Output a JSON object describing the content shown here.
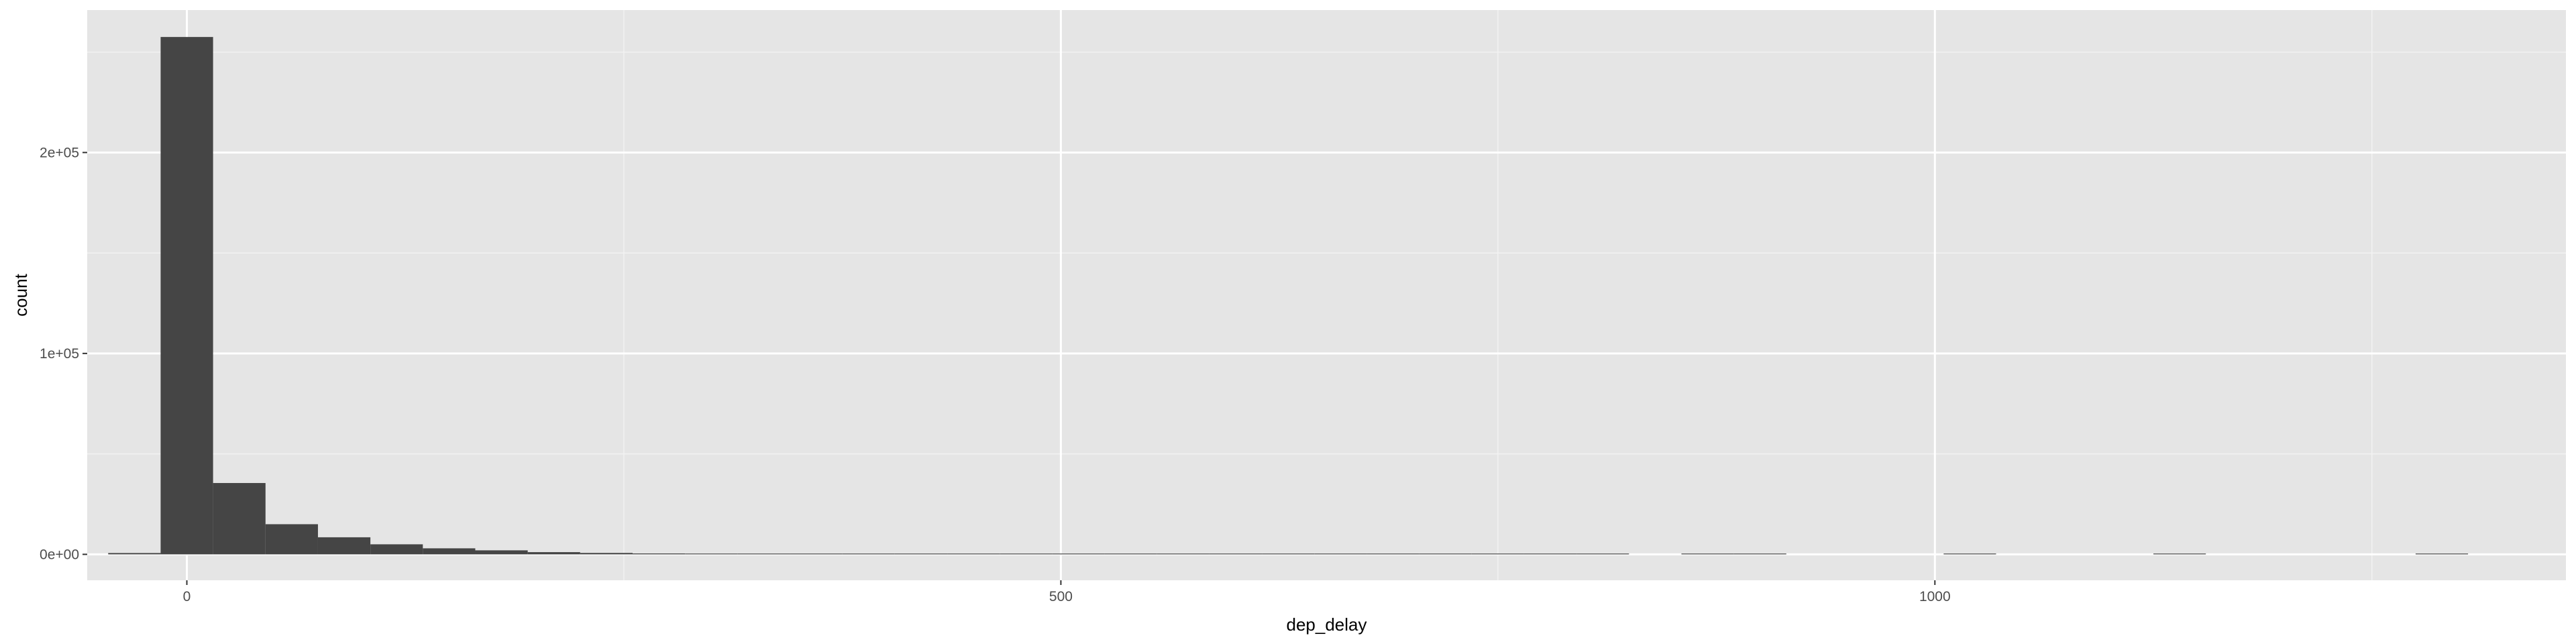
{
  "chart_data": {
    "type": "bar",
    "xlabel": "dep_delay",
    "ylabel": "count",
    "xlim": [
      -57,
      1361
    ],
    "ylim": [
      -12900,
      270900
    ],
    "x_ticks": [
      0,
      500,
      1000
    ],
    "x_tick_labels": [
      "0",
      "500",
      "1000"
    ],
    "x_minor_ticks": [
      250,
      750,
      1250
    ],
    "y_ticks": [
      0,
      100000,
      200000
    ],
    "y_tick_labels": [
      "0e+00",
      "1e+05",
      "2e+05"
    ],
    "y_minor_ticks": [
      50000,
      150000,
      250000
    ],
    "grid": true,
    "legend": "none",
    "bin_width": 30,
    "bins": [
      {
        "x0": -45,
        "x1": -15,
        "count": 650
      },
      {
        "x0": -15,
        "x1": 15,
        "count": 257500
      },
      {
        "x0": 15,
        "x1": 45,
        "count": 35500
      },
      {
        "x0": 45,
        "x1": 75,
        "count": 15000
      },
      {
        "x0": 75,
        "x1": 105,
        "count": 8500
      },
      {
        "x0": 105,
        "x1": 135,
        "count": 5000
      },
      {
        "x0": 135,
        "x1": 165,
        "count": 3000
      },
      {
        "x0": 165,
        "x1": 195,
        "count": 2000
      },
      {
        "x0": 195,
        "x1": 225,
        "count": 1100
      },
      {
        "x0": 225,
        "x1": 255,
        "count": 700
      },
      {
        "x0": 255,
        "x1": 285,
        "count": 450
      },
      {
        "x0": 285,
        "x1": 315,
        "count": 300
      },
      {
        "x0": 315,
        "x1": 345,
        "count": 200
      },
      {
        "x0": 345,
        "x1": 375,
        "count": 130
      },
      {
        "x0": 375,
        "x1": 405,
        "count": 80
      },
      {
        "x0": 405,
        "x1": 435,
        "count": 40
      },
      {
        "x0": 435,
        "x1": 465,
        "count": 25
      },
      {
        "x0": 465,
        "x1": 495,
        "count": 15
      },
      {
        "x0": 495,
        "x1": 525,
        "count": 10
      },
      {
        "x0": 525,
        "x1": 555,
        "count": 6
      },
      {
        "x0": 555,
        "x1": 585,
        "count": 4
      },
      {
        "x0": 585,
        "x1": 615,
        "count": 3
      },
      {
        "x0": 615,
        "x1": 645,
        "count": 2
      },
      {
        "x0": 645,
        "x1": 675,
        "count": 2
      },
      {
        "x0": 675,
        "x1": 705,
        "count": 1
      },
      {
        "x0": 705,
        "x1": 735,
        "count": 1
      },
      {
        "x0": 735,
        "x1": 765,
        "count": 1
      },
      {
        "x0": 765,
        "x1": 795,
        "count": 1
      },
      {
        "x0": 795,
        "x1": 825,
        "count": 1
      },
      {
        "x0": 855,
        "x1": 885,
        "count": 1
      },
      {
        "x0": 885,
        "x1": 915,
        "count": 1
      },
      {
        "x0": 1005,
        "x1": 1035,
        "count": 1
      },
      {
        "x0": 1125,
        "x1": 1155,
        "count": 1
      },
      {
        "x0": 1275,
        "x1": 1305,
        "count": 1
      }
    ]
  },
  "colors": {
    "panel_background": "#e5e5e5",
    "grid_major": "#ffffff",
    "grid_minor": "#f2f2f2",
    "bar_fill": "#454545",
    "tick_text": "#4d4d4d",
    "tick_mark": "#333333",
    "title_text": "#000000"
  }
}
